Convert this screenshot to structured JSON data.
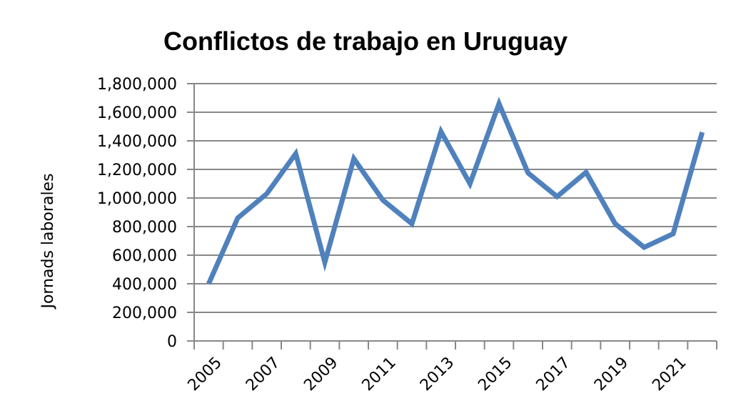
{
  "chart_data": {
    "type": "line",
    "title": "Conflictos de trabajo en Uruguay",
    "xlabel": "",
    "ylabel": "Jornads laborales",
    "x": [
      2005,
      2006,
      2007,
      2008,
      2009,
      2010,
      2011,
      2012,
      2013,
      2014,
      2015,
      2016,
      2017,
      2018,
      2019,
      2020,
      2021,
      2022
    ],
    "x_tick_labels": [
      "2005",
      "2007",
      "2009",
      "2011",
      "2013",
      "2015",
      "2017",
      "2019",
      "2021"
    ],
    "y_tick_labels": [
      "0",
      "200,000",
      "400,000",
      "600,000",
      "800,000",
      "1,000,000",
      "1,200,000",
      "1,400,000",
      "1,600,000",
      "1,800,000"
    ],
    "ylim": [
      0,
      1800000
    ],
    "grid": true,
    "legend": "none",
    "series": [
      {
        "color": "#4f81bd",
        "values": [
          400000,
          860000,
          1030000,
          1310000,
          550000,
          1275000,
          985000,
          820000,
          1465000,
          1100000,
          1660000,
          1175000,
          1010000,
          1180000,
          820000,
          655000,
          750000,
          1460000
        ]
      }
    ]
  }
}
